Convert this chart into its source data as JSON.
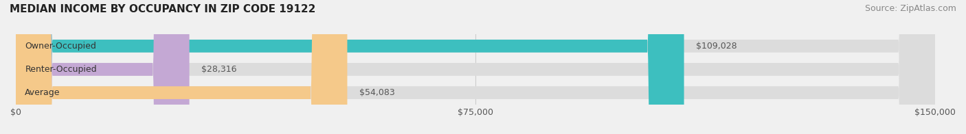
{
  "title": "MEDIAN INCOME BY OCCUPANCY IN ZIP CODE 19122",
  "source": "Source: ZipAtlas.com",
  "categories": [
    "Owner-Occupied",
    "Renter-Occupied",
    "Average"
  ],
  "values": [
    109028,
    28316,
    54083
  ],
  "bar_colors": [
    "#3dbfbf",
    "#c4a8d4",
    "#f5c98a"
  ],
  "bar_edge_colors": [
    "#3dbfbf",
    "#c4a8d4",
    "#f5c98a"
  ],
  "label_texts": [
    "$109,028",
    "$28,316",
    "$54,083"
  ],
  "xlim": [
    0,
    150000
  ],
  "xtick_values": [
    0,
    75000,
    150000
  ],
  "xtick_labels": [
    "$0",
    "$75,000",
    "$150,000"
  ],
  "background_color": "#f0f0f0",
  "bar_background_color": "#e8e8e8",
  "title_fontsize": 11,
  "source_fontsize": 9,
  "label_fontsize": 9,
  "category_fontsize": 9,
  "bar_height": 0.55,
  "figsize": [
    14.06,
    1.96
  ],
  "dpi": 100
}
